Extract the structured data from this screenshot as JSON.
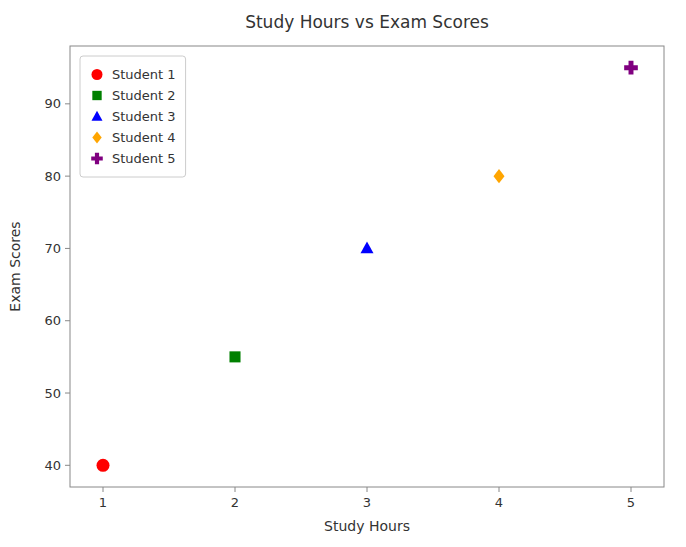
{
  "chart_data": {
    "type": "scatter",
    "title": "Study Hours vs Exam Scores",
    "xlabel": "Study Hours",
    "ylabel": "Exam Scores",
    "series": [
      {
        "name": "Student 1",
        "color": "red",
        "marker": "circle",
        "x": [
          1
        ],
        "values": [
          40
        ]
      },
      {
        "name": "Student 2",
        "color": "green",
        "marker": "square",
        "x": [
          2
        ],
        "values": [
          55
        ]
      },
      {
        "name": "Student 3",
        "color": "blue",
        "marker": "triangle",
        "x": [
          3
        ],
        "values": [
          70
        ]
      },
      {
        "name": "Student 4",
        "color": "orange",
        "marker": "diamond",
        "x": [
          4
        ],
        "values": [
          80
        ]
      },
      {
        "name": "Student 5",
        "color": "purple",
        "marker": "plus",
        "x": [
          5
        ],
        "values": [
          95
        ]
      }
    ],
    "xlim": [
      0.75,
      5.25
    ],
    "ylim": [
      37,
      98
    ],
    "xticks": [
      1,
      2,
      3,
      4,
      5
    ],
    "yticks": [
      40,
      50,
      60,
      70,
      80,
      90
    ],
    "grid": false,
    "legend": "upper-left"
  }
}
